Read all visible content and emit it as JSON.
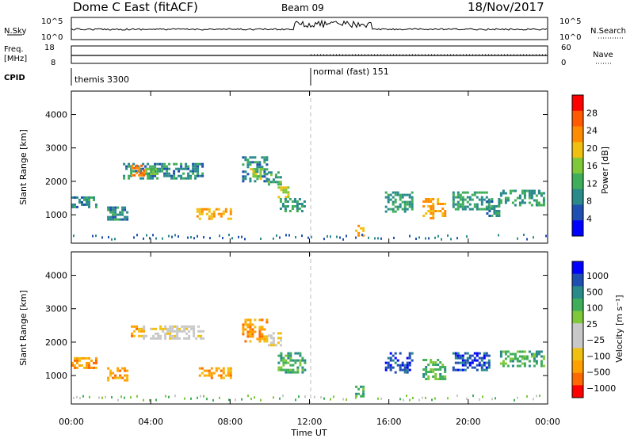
{
  "header": {
    "station": "Dome C East (fitACF)",
    "beam": "Beam 09",
    "date": "18/Nov/2017"
  },
  "panels": {
    "nsky_label": "N.Sky",
    "nsearch_label": "N.Search",
    "nsky_ticks": [
      "10^5",
      "10^0"
    ],
    "nsearch_ticks": [
      "10^5",
      "10^0"
    ],
    "freq_label": "Freq.",
    "freq_unit": "[MHz]",
    "freq_ticks": [
      "18",
      "8"
    ],
    "nave_label": "Nave",
    "nave_ticks": [
      "60",
      "0"
    ],
    "cpid_label": "CPID",
    "cpid_segments": [
      "themis 3300",
      "normal (fast) 151"
    ]
  },
  "colors": {
    "power": [
      "#0000ff",
      "#1f4fb0",
      "#2a8a8a",
      "#3fae5a",
      "#7fc83a",
      "#f0c010",
      "#ff8c00",
      "#ff5a00",
      "#ff0000"
    ],
    "velocity": [
      "#ff0000",
      "#ff6a00",
      "#ffa000",
      "#f0c010",
      "#c8c8c8",
      "#c8c8c8",
      "#7fc83a",
      "#3fae5a",
      "#2a8a8a",
      "#1f4fb0",
      "#0000ff"
    ]
  },
  "chart_data": [
    {
      "type": "heatmap",
      "name": "power",
      "ylabel": "Slant Range [km]",
      "yticks": [
        "1000",
        "2000",
        "3000",
        "4000"
      ],
      "ylim": [
        150,
        4700
      ],
      "xlim": [
        0,
        24
      ],
      "colorbar_label": "Power [dB]",
      "colorbar_ticks": [
        "4",
        "8",
        "12",
        "16",
        "20",
        "24",
        "28"
      ],
      "colorbar_range": [
        0,
        32
      ],
      "echo_regions": [
        {
          "t": [
            0.0,
            1.3
          ],
          "r": [
            1200,
            1550
          ],
          "value": 8
        },
        {
          "t": [
            1.8,
            2.8
          ],
          "r": [
            850,
            1250
          ],
          "value": 8
        },
        {
          "t": [
            2.6,
            6.6
          ],
          "r": [
            2100,
            2550
          ],
          "value": 8
        },
        {
          "t": [
            3.0,
            3.6
          ],
          "r": [
            2150,
            2500
          ],
          "value": 26
        },
        {
          "t": [
            3.6,
            4.2
          ],
          "r": [
            2200,
            2400
          ],
          "value": 14
        },
        {
          "t": [
            6.3,
            8.0
          ],
          "r": [
            900,
            1200
          ],
          "value": 22
        },
        {
          "t": [
            8.6,
            9.8
          ],
          "r": [
            2000,
            2750
          ],
          "value": 8
        },
        {
          "t": [
            9.0,
            9.6
          ],
          "r": [
            2100,
            2400
          ],
          "value": 16
        },
        {
          "t": [
            9.9,
            10.6
          ],
          "r": [
            1900,
            2300
          ],
          "value": 12
        },
        {
          "t": [
            10.4,
            10.9
          ],
          "r": [
            1550,
            1850
          ],
          "value": 18
        },
        {
          "t": [
            10.5,
            11.8
          ],
          "r": [
            1100,
            1500
          ],
          "value": 10
        },
        {
          "t": [
            14.3,
            14.7
          ],
          "r": [
            400,
            700
          ],
          "value": 22
        },
        {
          "t": [
            15.8,
            17.2
          ],
          "r": [
            1100,
            1700
          ],
          "value": 10
        },
        {
          "t": [
            17.7,
            18.8
          ],
          "r": [
            900,
            1500
          ],
          "value": 22
        },
        {
          "t": [
            19.2,
            21.0
          ],
          "r": [
            1200,
            1700
          ],
          "value": 10
        },
        {
          "t": [
            20.9,
            21.6
          ],
          "r": [
            1000,
            1500
          ],
          "value": 8
        },
        {
          "t": [
            21.6,
            23.8
          ],
          "r": [
            1300,
            1750
          ],
          "value": 10
        }
      ]
    },
    {
      "type": "heatmap",
      "name": "velocity",
      "xlabel": "Time UT",
      "ylabel": "Slant Range [km]",
      "xticks": [
        "00:00",
        "04:00",
        "08:00",
        "12:00",
        "16:00",
        "20:00",
        "00:00"
      ],
      "yticks": [
        "1000",
        "2000",
        "3000",
        "4000"
      ],
      "ylim": [
        150,
        4700
      ],
      "xlim": [
        0,
        24
      ],
      "colorbar_label": "Velocity [m s⁻¹]",
      "colorbar_ticks": [
        "1000",
        "500",
        "100",
        "25",
        "−25",
        "−100",
        "−500",
        "−1000"
      ],
      "echo_regions": [
        {
          "t": [
            0.0,
            1.3
          ],
          "r": [
            1200,
            1550
          ],
          "value": -300
        },
        {
          "t": [
            1.8,
            2.8
          ],
          "r": [
            850,
            1250
          ],
          "value": -120
        },
        {
          "t": [
            3.0,
            3.6
          ],
          "r": [
            2150,
            2500
          ],
          "value": -400
        },
        {
          "t": [
            3.6,
            6.6
          ],
          "r": [
            2100,
            2500
          ],
          "value": 0
        },
        {
          "t": [
            6.3,
            8.0
          ],
          "r": [
            900,
            1250
          ],
          "value": -400
        },
        {
          "t": [
            8.6,
            9.8
          ],
          "r": [
            2000,
            2700
          ],
          "value": -300
        },
        {
          "t": [
            9.9,
            10.6
          ],
          "r": [
            1900,
            2300
          ],
          "value": 0
        },
        {
          "t": [
            10.4,
            11.8
          ],
          "r": [
            1100,
            1700
          ],
          "value": 150
        },
        {
          "t": [
            14.3,
            14.7
          ],
          "r": [
            400,
            700
          ],
          "value": 150
        },
        {
          "t": [
            15.8,
            17.2
          ],
          "r": [
            1100,
            1700
          ],
          "value": 600
        },
        {
          "t": [
            17.7,
            18.8
          ],
          "r": [
            900,
            1500
          ],
          "value": 400
        },
        {
          "t": [
            19.2,
            21.0
          ],
          "r": [
            1200,
            1700
          ],
          "value": 500
        },
        {
          "t": [
            21.6,
            23.8
          ],
          "r": [
            1300,
            1750
          ],
          "value": 400
        }
      ]
    }
  ]
}
